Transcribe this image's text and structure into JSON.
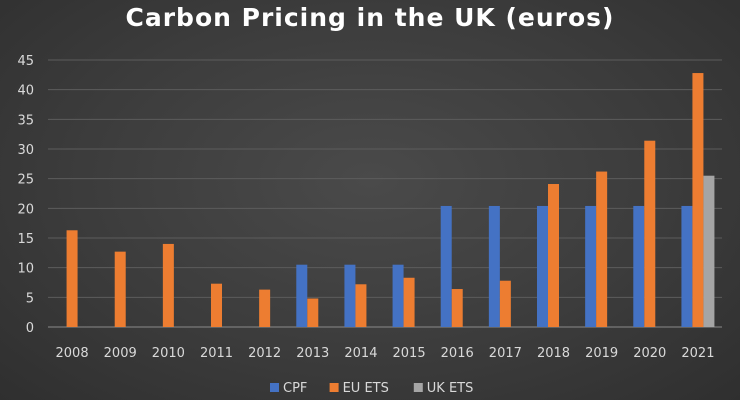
{
  "chart_data": {
    "type": "bar",
    "title": "Carbon Pricing in the UK (euros)",
    "xlabel": "",
    "ylabel": "",
    "ylim": [
      0,
      45
    ],
    "yticks": [
      0,
      5,
      10,
      15,
      20,
      25,
      30,
      35,
      40,
      45
    ],
    "grid": true,
    "legend": "bottom",
    "categories": [
      "2008",
      "2009",
      "2010",
      "2011",
      "2012",
      "2013",
      "2014",
      "2015",
      "2016",
      "2017",
      "2018",
      "2019",
      "2020",
      "2021"
    ],
    "series": [
      {
        "name": "CPF",
        "color": "#4472c4",
        "values": [
          null,
          null,
          null,
          null,
          null,
          10.5,
          10.5,
          10.5,
          20.4,
          20.4,
          20.4,
          20.4,
          20.4,
          20.4
        ]
      },
      {
        "name": "EU ETS",
        "color": "#ed7d31",
        "values": [
          16.3,
          12.7,
          14.0,
          7.3,
          6.3,
          4.8,
          7.2,
          8.3,
          6.4,
          7.8,
          24.1,
          26.2,
          31.4,
          42.8
        ]
      },
      {
        "name": "UK ETS",
        "color": "#a5a5a5",
        "values": [
          null,
          null,
          null,
          null,
          null,
          null,
          null,
          null,
          null,
          null,
          null,
          null,
          null,
          25.5
        ]
      }
    ]
  }
}
